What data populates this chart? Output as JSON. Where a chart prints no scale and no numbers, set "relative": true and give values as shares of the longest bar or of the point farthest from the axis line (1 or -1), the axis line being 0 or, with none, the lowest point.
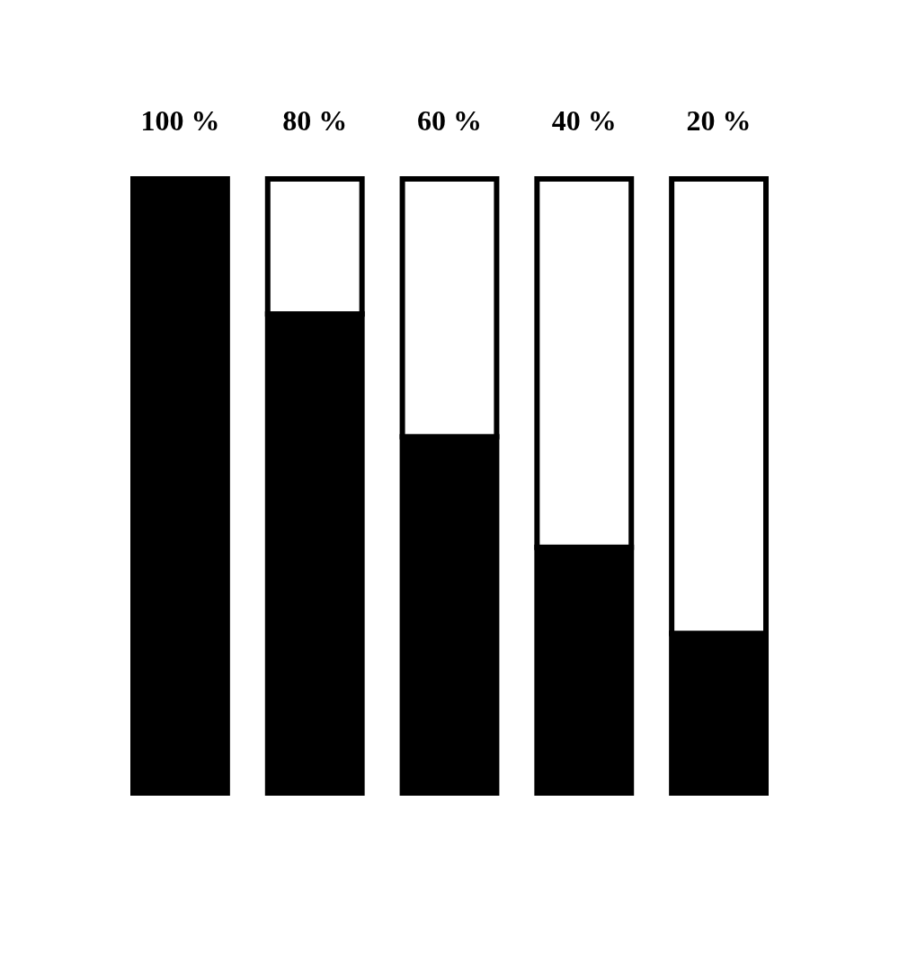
{
  "chart_data": {
    "type": "bar",
    "relative": true,
    "stacked": true,
    "categories": [
      "100 %",
      "80 %",
      "60 %",
      "40 %",
      "20 %"
    ],
    "series": [
      {
        "color": "#000000",
        "values": [
          1,
          0.78,
          0.58,
          0.4,
          0.26
        ]
      },
      {
        "color": "#ffffff",
        "values": [
          null,
          0.22,
          0.42,
          0.6,
          0.74
        ]
      }
    ]
  }
}
